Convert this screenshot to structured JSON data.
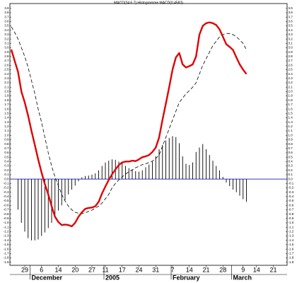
{
  "chart_data": {
    "type": "line",
    "title": "MACD(24 6 7) Histogramme MACD(0.4583)",
    "categories": [
      null,
      null,
      null,
      null,
      "29",
      null,
      null,
      null,
      null,
      "6",
      null,
      null,
      null,
      null,
      "14",
      null,
      null,
      null,
      null,
      "20",
      null,
      null,
      null,
      null,
      "27",
      null,
      null,
      null,
      "11",
      null,
      null,
      null,
      null,
      "17",
      null,
      null,
      null,
      null,
      "24",
      null,
      null,
      null,
      null,
      "31",
      null,
      null,
      null,
      null,
      "7",
      null,
      null,
      null,
      null,
      "14",
      null,
      null,
      null,
      null,
      "21",
      null,
      null,
      null,
      null,
      "28",
      null,
      null,
      null,
      null,
      null,
      "9",
      null,
      null,
      null,
      "14",
      null,
      null,
      null,
      null,
      "21",
      null,
      null,
      null,
      null
    ],
    "periods": [
      {
        "label": "December",
        "index": 6
      },
      {
        "label": "2005",
        "index": 28
      },
      {
        "label": "February",
        "index": 48
      },
      {
        "label": "March",
        "index": 66
      }
    ],
    "series": [
      {
        "style": "bar",
        "color": "#000000",
        "values": [
          null,
          null,
          -0.7,
          -1.0,
          -1.2,
          -1.35,
          -1.4,
          -1.4,
          -1.38,
          -1.3,
          -1.22,
          -1.12,
          -1.0,
          -0.85,
          -0.72,
          -0.6,
          -0.48,
          -0.35,
          -0.24,
          -0.15,
          -0.05,
          0.04,
          0.07,
          0.08,
          0.1,
          0.13,
          0.2,
          0.3,
          0.38,
          0.42,
          0.45,
          0.44,
          0.4,
          0.37,
          0.3,
          0.25,
          0.22,
          0.18,
          0.17,
          0.2,
          0.27,
          0.33,
          0.4,
          0.52,
          0.68,
          0.78,
          0.88,
          0.94,
          0.98,
          0.96,
          0.82,
          0.52,
          0.35,
          0.32,
          0.38,
          0.62,
          0.72,
          0.8,
          0.68,
          0.55,
          0.42,
          0.3,
          0.2,
          0.05,
          -0.08,
          -0.16,
          -0.24,
          -0.3,
          -0.38,
          -0.46,
          -0.52,
          null,
          null,
          null,
          null,
          null,
          null,
          null,
          null,
          null,
          null,
          null,
          null
        ]
      },
      {
        "style": "dashed",
        "color": "#000000",
        "values": [
          3.48,
          3.35,
          3.2,
          3.0,
          2.8,
          2.55,
          2.25,
          1.95,
          1.6,
          1.3,
          0.95,
          0.6,
          0.3,
          0.05,
          -0.15,
          -0.35,
          -0.5,
          -0.62,
          -0.7,
          -0.76,
          -0.78,
          -0.79,
          -0.77,
          -0.74,
          -0.71,
          -0.66,
          -0.62,
          -0.55,
          -0.45,
          -0.35,
          -0.2,
          -0.1,
          -0.02,
          0.05,
          0.11,
          0.17,
          0.21,
          0.26,
          0.29,
          0.33,
          0.35,
          0.38,
          0.41,
          0.47,
          0.55,
          0.75,
          0.95,
          1.15,
          1.35,
          1.55,
          1.75,
          1.85,
          1.95,
          2.02,
          2.1,
          2.2,
          2.4,
          2.6,
          2.75,
          2.9,
          3.05,
          3.15,
          3.25,
          3.3,
          3.33,
          3.32,
          3.3,
          3.25,
          3.18,
          3.1,
          2.95,
          null,
          null,
          null,
          null,
          null,
          null,
          null,
          null,
          null,
          null,
          null,
          null
        ]
      },
      {
        "style": "line",
        "color": "#e00000",
        "values": [
          2.96,
          2.7,
          2.45,
          2.0,
          1.75,
          1.45,
          1.1,
          0.78,
          0.45,
          0.15,
          -0.12,
          -0.35,
          -0.62,
          -0.86,
          -0.98,
          -1.05,
          -1.04,
          -1.05,
          -1.08,
          -1.0,
          -0.86,
          -0.76,
          -0.68,
          -0.66,
          -0.65,
          -0.62,
          -0.52,
          -0.33,
          -0.17,
          -0.02,
          0.11,
          0.22,
          0.32,
          0.38,
          0.4,
          0.4,
          0.42,
          0.41,
          0.45,
          0.5,
          0.52,
          0.55,
          0.62,
          0.72,
          0.95,
          1.35,
          1.72,
          2.1,
          2.5,
          2.78,
          2.88,
          2.62,
          2.55,
          2.58,
          2.62,
          2.8,
          3.3,
          3.5,
          3.56,
          3.58,
          3.56,
          3.52,
          3.42,
          3.25,
          3.08,
          3.02,
          2.95,
          2.78,
          2.62,
          2.5,
          2.4,
          null,
          null,
          null,
          null,
          null,
          null,
          null,
          null,
          null,
          null,
          null,
          null
        ]
      }
    ],
    "ylim": [
      -1.97,
      4.01
    ],
    "yticks": [
      3.9,
      3.8,
      3.7,
      3.6,
      3.5,
      3.4,
      3.3,
      3.2,
      3.1,
      {
        "value": 3,
        "label": "3.0"
      },
      2.9,
      2.8,
      2.7,
      2.6,
      2.5,
      2.4,
      2.3,
      2.2,
      2.1,
      {
        "value": 2,
        "label": "2.0"
      },
      1.9,
      1.8,
      1.7,
      1.6,
      1.5,
      1.4,
      1.3,
      1.2,
      1.1,
      {
        "value": 1,
        "label": "1.0"
      },
      0.9,
      0.8,
      0.7,
      0.6,
      0.5,
      0.4,
      0.3,
      0.2,
      0.1,
      {
        "value": 0,
        "label": "0.0"
      },
      -0.1,
      -0.2,
      -0.3,
      -0.4,
      -0.5,
      -0.6,
      -0.7,
      -0.8,
      -0.9,
      {
        "value": -1,
        "label": "-1.0"
      },
      -1.1,
      -1.2,
      -1.3,
      -1.4,
      -1.5,
      -1.6,
      -1.7,
      -1.8,
      -1.9
    ],
    "zero_line_color": "#2a3cc0"
  }
}
